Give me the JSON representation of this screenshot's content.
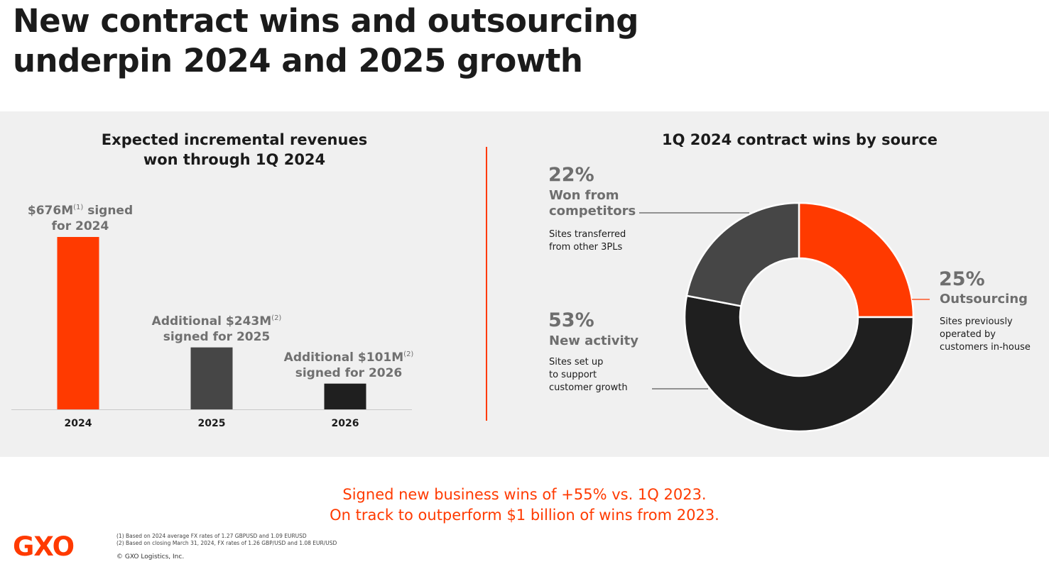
{
  "slide": {
    "title_lines": [
      "New contract wins and outsourcing",
      "underpin 2024 and 2025 growth"
    ],
    "tagline_lines": [
      "Signed new business wins of +55% vs. 1Q 2023.",
      "On track to outperform $1 billion of wins from 2023."
    ],
    "logo_text": "GXO",
    "footnotes": [
      "(1) Based on 2024 average FX rates of 1.27 GBPUSD and 1.09 EURUSD",
      "(2) Based on closing March 31, 2024, FX rates of 1.26 GBP/USD and 1.08 EUR/USD"
    ],
    "copyright": "© GXO Logistics, Inc.",
    "colors": {
      "accent": "#ff3a00",
      "dark_gray": "#464646",
      "near_black": "#1f1f1f",
      "panel_bg": "#f0f0f0"
    }
  },
  "chart_data": [
    {
      "type": "bar",
      "title_lines": [
        "Expected incremental revenues",
        "won through 1Q 2024"
      ],
      "categories": [
        "2024",
        "2025",
        "2026"
      ],
      "values": [
        676,
        243,
        101
      ],
      "unit": "$M",
      "ylim": [
        0,
        676
      ],
      "grid": false,
      "bar_colors": [
        "#ff3a00",
        "#464646",
        "#1f1f1f"
      ],
      "labels": [
        {
          "prefix": "",
          "amount": "$676M",
          "note": "(1)",
          "suffix": " signed",
          "line2": "for 2024"
        },
        {
          "prefix": "Additional ",
          "amount": "$243M",
          "note": "(2)",
          "suffix": "",
          "line2": "signed for 2025"
        },
        {
          "prefix": "Additional ",
          "amount": "$101M",
          "note": "(2)",
          "suffix": "",
          "line2": "signed for 2026"
        }
      ]
    },
    {
      "type": "pie",
      "subtype": "donut",
      "title": "1Q 2024 contract wins by source",
      "slices": [
        {
          "key": "outsourcing",
          "pct_label": "25%",
          "value": 25,
          "name_lines": [
            "Outsourcing"
          ],
          "desc_lines": [
            "Sites previously",
            "operated by",
            "customers in-house"
          ],
          "color": "#ff3a00"
        },
        {
          "key": "new_activity",
          "pct_label": "53%",
          "value": 53,
          "name_lines": [
            "New activity"
          ],
          "desc_lines": [
            "Sites set up",
            "to support",
            "customer growth"
          ],
          "color": "#1f1f1f"
        },
        {
          "key": "competitors",
          "pct_label": "22%",
          "value": 22,
          "name_lines": [
            "Won from",
            "competitors"
          ],
          "desc_lines": [
            "Sites transferred",
            "from other 3PLs"
          ],
          "color": "#464646"
        }
      ],
      "grid": false
    }
  ]
}
